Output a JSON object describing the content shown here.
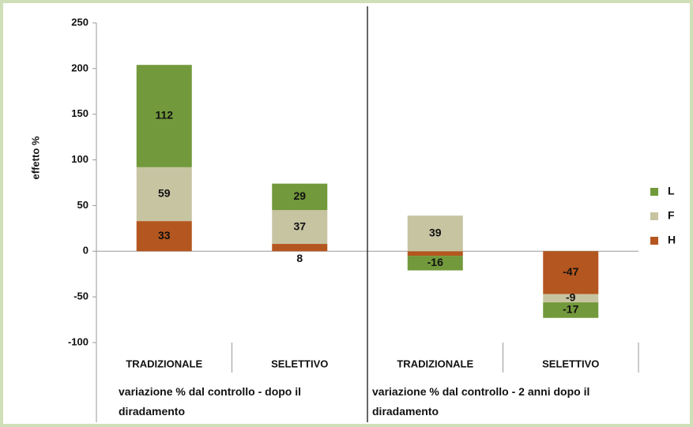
{
  "chart_data": {
    "type": "stacked_bar",
    "y_label": "effetto %",
    "categories": [
      "TRADIZIONALE",
      "SELETTIVO",
      "TRADIZIONALE",
      "SELETTIVO"
    ],
    "groups": [
      {
        "label": "variazione % dal controllo - dopo il diradamento"
      },
      {
        "label": "variazione % dal controllo - 2 anni dopo il diradamento"
      }
    ],
    "series": [
      {
        "name": "L",
        "color": "#72993b",
        "values": [
          112,
          29,
          -16,
          -17
        ]
      },
      {
        "name": "F",
        "color": "#c7c4a2",
        "values": [
          59,
          37,
          39,
          -9
        ]
      },
      {
        "name": "H",
        "color": "#b4561f",
        "values": [
          33,
          8,
          -5,
          -47
        ]
      }
    ],
    "ylim": [
      -100,
      250
    ],
    "yticks": [
      -100,
      -50,
      0,
      50,
      100,
      150,
      200,
      250
    ],
    "legend": "right"
  }
}
